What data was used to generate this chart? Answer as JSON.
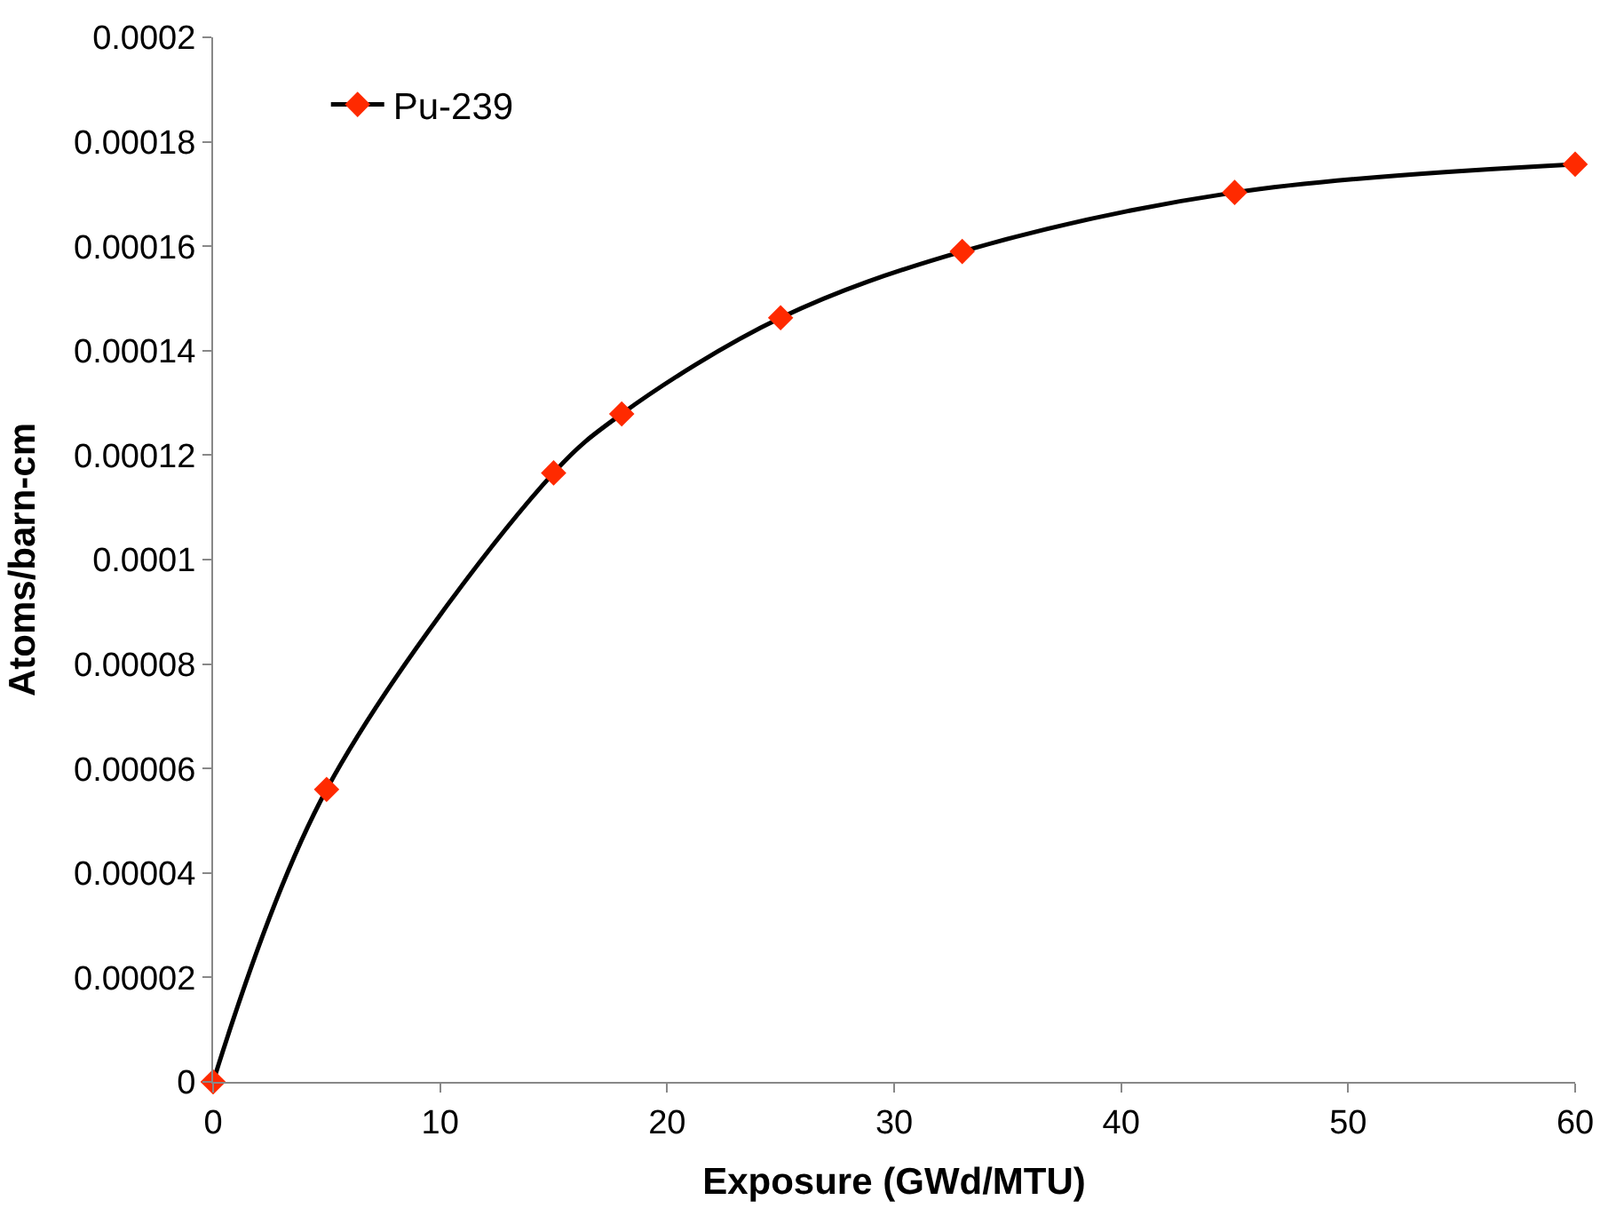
{
  "chart_data": {
    "type": "line",
    "xlabel": "Exposure (GWd/MTU)",
    "ylabel": "Atoms/barn-cm",
    "x": [
      0,
      5,
      15,
      18,
      25,
      33,
      45,
      60
    ],
    "series": [
      {
        "name": "Pu-239",
        "color": "#000000",
        "colors": [
          "#ff2a00",
          "#ff2a00",
          "#ff2a00",
          "#ff2a00",
          "#ff2a00",
          "#ff2a00",
          "#ff2a00",
          "#ff2a00"
        ],
        "values": [
          0,
          5.6e-05,
          0.0001166,
          0.0001279,
          0.0001463,
          0.000159,
          0.0001703,
          0.0001757
        ]
      }
    ],
    "xlim": [
      0,
      60
    ],
    "xticks": [
      0,
      10,
      20,
      30,
      40,
      50,
      60
    ],
    "ylim": [
      0,
      0.0002
    ],
    "yticks": [
      0,
      {
        "value": 2e-05,
        "label": "0.00002"
      },
      {
        "value": 4e-05,
        "label": "0.00004"
      },
      {
        "value": 6e-05,
        "label": "0.00006"
      },
      {
        "value": 8e-05,
        "label": "0.00008"
      },
      {
        "value": 0.0001,
        "label": "0.0001"
      },
      {
        "value": 0.00012,
        "label": "0.00012"
      },
      {
        "value": 0.00014,
        "label": "0.00014"
      },
      {
        "value": 0.00016,
        "label": "0.00016"
      },
      {
        "value": 0.00018,
        "label": "0.00018"
      },
      {
        "value": 0.0002,
        "label": "0.0002"
      }
    ],
    "legend": "top left",
    "marker": "diamond",
    "line_style": "solid"
  }
}
